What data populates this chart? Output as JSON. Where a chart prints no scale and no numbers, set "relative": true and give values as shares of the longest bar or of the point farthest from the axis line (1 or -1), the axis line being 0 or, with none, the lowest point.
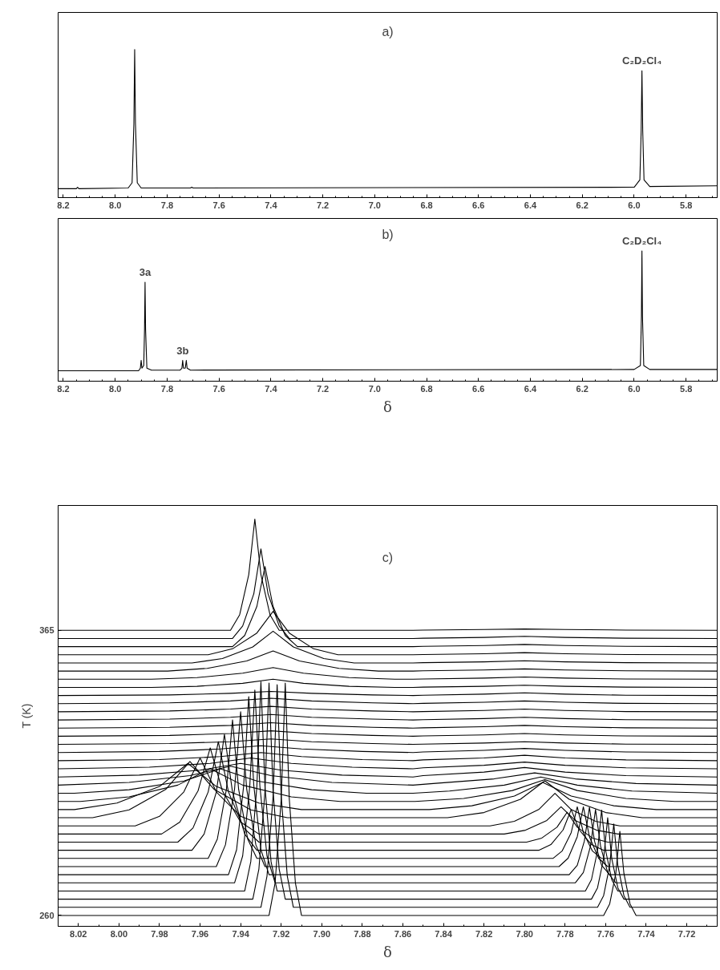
{
  "chart_data": [
    {
      "type": "line",
      "relative": true,
      "color": "#000000",
      "xlim": [
        8.22,
        5.68
      ],
      "xticks": [
        {
          "value": 8.2,
          "label": "8.2"
        },
        {
          "value": 8.0,
          "label": "8.0"
        },
        {
          "value": 7.8,
          "label": "7.8"
        },
        {
          "value": 7.6,
          "label": "7.6"
        },
        {
          "value": 7.4,
          "label": "7.4"
        },
        {
          "value": 7.2,
          "label": "7.2"
        },
        {
          "value": 7.0,
          "label": "7.0"
        },
        {
          "value": 6.8,
          "label": "6.8"
        },
        {
          "value": 6.6,
          "label": "6.6"
        },
        {
          "value": 6.4,
          "label": "6.4"
        },
        {
          "value": 6.2,
          "label": "6.2"
        },
        {
          "value": 6.0,
          "label": "6.0"
        },
        {
          "value": 5.8,
          "label": "5.8"
        },
        {
          "value": 8.15,
          "label": null
        },
        {
          "value": 8.1,
          "label": null
        },
        {
          "value": 8.05,
          "label": null
        },
        {
          "value": 7.95,
          "label": null
        },
        {
          "value": 7.9,
          "label": null
        },
        {
          "value": 7.85,
          "label": null
        },
        {
          "value": 7.75,
          "label": null
        },
        {
          "value": 7.7,
          "label": null
        },
        {
          "value": 7.65,
          "label": null
        },
        {
          "value": 7.55,
          "label": null
        },
        {
          "value": 7.5,
          "label": null
        },
        {
          "value": 7.45,
          "label": null
        },
        {
          "value": 7.35,
          "label": null
        },
        {
          "value": 7.3,
          "label": null
        },
        {
          "value": 7.25,
          "label": null
        },
        {
          "value": 7.15,
          "label": null
        },
        {
          "value": 7.1,
          "label": null
        },
        {
          "value": 7.05,
          "label": null
        },
        {
          "value": 6.95,
          "label": null
        },
        {
          "value": 6.9,
          "label": null
        },
        {
          "value": 6.85,
          "label": null
        },
        {
          "value": 6.75,
          "label": null
        },
        {
          "value": 6.7,
          "label": null
        },
        {
          "value": 6.65,
          "label": null
        },
        {
          "value": 6.55,
          "label": null
        },
        {
          "value": 6.5,
          "label": null
        },
        {
          "value": 6.45,
          "label": null
        },
        {
          "value": 6.35,
          "label": null
        },
        {
          "value": 6.3,
          "label": null
        },
        {
          "value": 6.25,
          "label": null
        },
        {
          "value": 6.15,
          "label": null
        },
        {
          "value": 6.1,
          "label": null
        },
        {
          "value": 6.05,
          "label": null
        },
        {
          "value": 5.95,
          "label": null
        },
        {
          "value": 5.9,
          "label": null
        },
        {
          "value": 5.85,
          "label": null
        },
        {
          "value": 5.75,
          "label": null
        },
        {
          "value": 5.7,
          "label": null
        }
      ],
      "x": [
        8.22,
        8.15,
        8.145,
        8.14,
        7.95,
        7.935,
        7.928,
        7.925,
        7.922,
        7.915,
        7.9,
        7.71,
        7.705,
        7.7,
        6.0,
        5.978,
        5.973,
        5.97,
        5.967,
        5.962,
        5.94,
        5.68
      ],
      "values": [
        0.06,
        0.06,
        0.07,
        0.06,
        0.065,
        0.1,
        0.5,
        1,
        0.5,
        0.1,
        0.065,
        0.065,
        0.07,
        0.065,
        0.07,
        0.12,
        0.45,
        0.856,
        0.45,
        0.12,
        0.075,
        0.08
      ],
      "annotations": [
        "a)",
        {
          "text": "C₂D₂Cl₄",
          "x": 5.97,
          "y": 0.856
        }
      ]
    },
    {
      "type": "line",
      "relative": true,
      "color": "#000000",
      "xlim": [
        8.22,
        5.68
      ],
      "xlabel": "δ",
      "xticks": [
        {
          "value": 8.2,
          "label": "8.2"
        },
        {
          "value": 8.0,
          "label": "8.0"
        },
        {
          "value": 7.8,
          "label": "7.8"
        },
        {
          "value": 7.6,
          "label": "7.6"
        },
        {
          "value": 7.4,
          "label": "7.4"
        },
        {
          "value": 7.2,
          "label": "7.2"
        },
        {
          "value": 7.0,
          "label": "7.0"
        },
        {
          "value": 6.8,
          "label": "6.8"
        },
        {
          "value": 6.6,
          "label": "6.6"
        },
        {
          "value": 6.4,
          "label": "6.4"
        },
        {
          "value": 6.2,
          "label": "6.2"
        },
        {
          "value": 6.0,
          "label": "6.0"
        },
        {
          "value": 5.8,
          "label": "5.8"
        },
        {
          "value": 8.15,
          "label": null
        },
        {
          "value": 8.1,
          "label": null
        },
        {
          "value": 8.05,
          "label": null
        },
        {
          "value": 7.95,
          "label": null
        },
        {
          "value": 7.9,
          "label": null
        },
        {
          "value": 7.85,
          "label": null
        },
        {
          "value": 7.75,
          "label": null
        },
        {
          "value": 7.7,
          "label": null
        },
        {
          "value": 7.65,
          "label": null
        },
        {
          "value": 7.55,
          "label": null
        },
        {
          "value": 7.5,
          "label": null
        },
        {
          "value": 7.45,
          "label": null
        },
        {
          "value": 7.35,
          "label": null
        },
        {
          "value": 7.3,
          "label": null
        },
        {
          "value": 7.25,
          "label": null
        },
        {
          "value": 7.15,
          "label": null
        },
        {
          "value": 7.1,
          "label": null
        },
        {
          "value": 7.05,
          "label": null
        },
        {
          "value": 6.95,
          "label": null
        },
        {
          "value": 6.9,
          "label": null
        },
        {
          "value": 6.85,
          "label": null
        },
        {
          "value": 6.75,
          "label": null
        },
        {
          "value": 6.7,
          "label": null
        },
        {
          "value": 6.65,
          "label": null
        },
        {
          "value": 6.55,
          "label": null
        },
        {
          "value": 6.5,
          "label": null
        },
        {
          "value": 6.45,
          "label": null
        },
        {
          "value": 6.35,
          "label": null
        },
        {
          "value": 6.3,
          "label": null
        },
        {
          "value": 6.25,
          "label": null
        },
        {
          "value": 6.15,
          "label": null
        },
        {
          "value": 6.1,
          "label": null
        },
        {
          "value": 6.05,
          "label": null
        },
        {
          "value": 5.95,
          "label": null
        },
        {
          "value": 5.9,
          "label": null
        },
        {
          "value": 5.85,
          "label": null
        },
        {
          "value": 5.75,
          "label": null
        },
        {
          "value": 5.7,
          "label": null
        }
      ],
      "x": [
        8.22,
        7.91,
        7.903,
        7.9,
        7.897,
        7.89,
        7.887,
        7.885,
        7.883,
        7.878,
        7.86,
        7.75,
        7.743,
        7.74,
        7.737,
        7.73,
        7.726,
        7.723,
        7.71,
        6.0,
        5.976,
        5.972,
        5.97,
        5.968,
        5.963,
        5.94,
        5.68
      ],
      "values": [
        0.08,
        0.08,
        0.1,
        0.16,
        0.1,
        0.12,
        0.4,
        0.76,
        0.4,
        0.1,
        0.085,
        0.085,
        0.1,
        0.16,
        0.1,
        0.1,
        0.16,
        0.1,
        0.085,
        0.09,
        0.12,
        0.5,
        1,
        0.5,
        0.12,
        0.09,
        0.09
      ],
      "annotations": [
        "b)",
        {
          "text": "3a",
          "x": 7.885,
          "y": 0.76
        },
        {
          "text": "3b",
          "x": 7.74,
          "y": 0.16
        },
        {
          "text": "C₂D₂Cl₄",
          "x": 5.97,
          "y": 1
        }
      ]
    },
    {
      "type": "line",
      "color": "#000000",
      "xlim": [
        8.03,
        7.705
      ],
      "ylim": [
        256,
        411
      ],
      "xlabel": "δ",
      "ylabel": "T (K)",
      "yticks": [
        260,
        365
      ],
      "xticks": [
        {
          "value": 8.02,
          "label": "8.02"
        },
        {
          "value": 8.0,
          "label": "8.00"
        },
        {
          "value": 7.98,
          "label": "7.98"
        },
        {
          "value": 7.96,
          "label": "7.96"
        },
        {
          "value": 7.94,
          "label": "7.94"
        },
        {
          "value": 7.92,
          "label": "7.92"
        },
        {
          "value": 7.9,
          "label": "7.90"
        },
        {
          "value": 7.88,
          "label": "7.88"
        },
        {
          "value": 7.86,
          "label": "7.86"
        },
        {
          "value": 7.84,
          "label": "7.84"
        },
        {
          "value": 7.82,
          "label": "7.82"
        },
        {
          "value": 7.8,
          "label": "7.80"
        },
        {
          "value": 7.78,
          "label": "7.78"
        },
        {
          "value": 7.76,
          "label": "7.76"
        },
        {
          "value": 7.74,
          "label": "7.74"
        },
        {
          "value": 7.72,
          "label": "7.72"
        },
        {
          "value": 8.01,
          "label": null
        },
        {
          "value": 7.99,
          "label": null
        },
        {
          "value": 7.97,
          "label": null
        },
        {
          "value": 7.95,
          "label": null
        },
        {
          "value": 7.93,
          "label": null
        },
        {
          "value": 7.91,
          "label": null
        },
        {
          "value": 7.89,
          "label": null
        },
        {
          "value": 7.87,
          "label": null
        },
        {
          "value": 7.85,
          "label": null
        },
        {
          "value": 7.83,
          "label": null
        },
        {
          "value": 7.81,
          "label": null
        },
        {
          "value": 7.79,
          "label": null
        },
        {
          "value": 7.77,
          "label": null
        },
        {
          "value": 7.75,
          "label": null
        },
        {
          "value": 7.73,
          "label": null
        },
        {
          "value": 7.71,
          "label": null
        }
      ],
      "annotations": [
        "c)"
      ],
      "series": [
        {
          "x": [
            8.03,
            7.926,
            7.923,
            7.92,
            7.918,
            7.916,
            7.913,
            7.91,
            7.855,
            7.761,
            7.758,
            7.755,
            7.753,
            7.751,
            7.748,
            7.745,
            7.705
          ],
          "values": [
            260,
            260,
            272,
            302.8,
            345.6,
            302.8,
            272,
            260,
            260,
            260,
            264.3,
            275.5,
            291,
            275.5,
            264.3,
            260,
            260
          ]
        },
        {
          "x": [
            8.03,
            7.93,
            7.927,
            7.924,
            7.922,
            7.92,
            7.917,
            7.914,
            7.855,
            7.764,
            7.761,
            7.758,
            7.756,
            7.754,
            7.751,
            7.748,
            7.705
          ],
          "values": [
            263,
            263,
            274.5,
            304,
            345,
            304,
            274.5,
            263,
            263,
            263,
            267.3,
            278.4,
            293.7,
            278.4,
            267.3,
            263,
            263
          ]
        },
        {
          "x": [
            8.03,
            7.934,
            7.931,
            7.928,
            7.926,
            7.924,
            7.921,
            7.918,
            7.855,
            7.767,
            7.764,
            7.761,
            7.759,
            7.757,
            7.754,
            7.751,
            7.705
          ],
          "values": [
            266,
            266,
            277.1,
            305.8,
            345.6,
            305.8,
            277.1,
            266,
            266,
            266,
            270.2,
            281,
            296,
            281,
            270.2,
            266,
            266
          ]
        },
        {
          "x": [
            8.03,
            7.938,
            7.935,
            7.932,
            7.93,
            7.928,
            7.925,
            7.922,
            7.855,
            7.77,
            7.767,
            7.764,
            7.762,
            7.76,
            7.757,
            7.754,
            7.705
          ],
          "values": [
            269,
            269,
            279.8,
            307.5,
            346,
            307.5,
            279.8,
            269,
            269,
            269,
            273.2,
            283.9,
            298.8,
            283.9,
            273.2,
            269,
            269
          ]
        },
        {
          "x": [
            8.03,
            7.943,
            7.939,
            7.9355,
            7.933,
            7.9305,
            7.927,
            7.923,
            7.855,
            7.775,
            7.771,
            7.7675,
            7.765,
            7.7625,
            7.759,
            7.755,
            7.705
          ],
          "values": [
            272,
            272,
            281.9,
            307.5,
            343,
            307.5,
            281.9,
            272,
            272,
            272,
            275.8,
            285.5,
            299,
            285.5,
            275.8,
            272,
            272
          ]
        },
        {
          "x": [
            8.03,
            7.946,
            7.942,
            7.9385,
            7.936,
            7.9335,
            7.93,
            7.926,
            7.855,
            7.778,
            7.774,
            7.7705,
            7.768,
            7.7655,
            7.762,
            7.758,
            7.705
          ],
          "values": [
            275,
            275,
            284.2,
            307.8,
            340.6,
            307.8,
            284.2,
            275,
            275,
            275,
            278.5,
            287.4,
            299.8,
            287.4,
            278.5,
            275,
            275
          ]
        },
        {
          "x": [
            8.03,
            7.952,
            7.9475,
            7.943,
            7.94,
            7.937,
            7.9325,
            7.928,
            7.855,
            7.783,
            7.7785,
            7.774,
            7.771,
            7.768,
            7.7635,
            7.759,
            7.705
          ],
          "values": [
            278,
            278,
            286,
            306.5,
            335,
            306.5,
            286,
            278,
            278,
            278,
            281.1,
            289,
            300,
            289,
            281.1,
            278,
            278
          ]
        },
        {
          "x": [
            8.03,
            7.956,
            7.9515,
            7.947,
            7.944,
            7.941,
            7.9365,
            7.932,
            7.855,
            7.786,
            7.7815,
            7.777,
            7.774,
            7.771,
            7.7665,
            7.762,
            7.705
          ],
          "values": [
            281,
            281,
            288.1,
            306.5,
            332,
            306.5,
            288.1,
            281,
            281,
            281,
            283.7,
            290.5,
            300,
            290.5,
            283.7,
            281,
            281
          ]
        },
        {
          "x": [
            8.03,
            7.964,
            7.958,
            7.952,
            7.948,
            7.944,
            7.938,
            7.932,
            7.855,
            7.793,
            7.787,
            7.781,
            7.777,
            7.773,
            7.767,
            7.761,
            7.705
          ],
          "values": [
            284,
            284,
            290,
            305.4,
            326.7,
            305.4,
            290,
            284,
            284,
            284,
            286.1,
            291.5,
            299,
            291.5,
            286.1,
            284,
            284
          ]
        },
        {
          "x": [
            8.03,
            7.971,
            7.9635,
            7.956,
            7.951,
            7.946,
            7.9385,
            7.931,
            7.855,
            7.799,
            7.7915,
            7.784,
            7.779,
            7.774,
            7.7665,
            7.759,
            7.705
          ],
          "values": [
            287,
            287,
            292.2,
            305.5,
            324,
            305.5,
            292.2,
            287,
            287,
            287,
            288.5,
            292.5,
            298,
            292.5,
            288.5,
            287,
            287
          ]
        },
        {
          "x": [
            8.03,
            7.979,
            7.97,
            7.961,
            7.955,
            7.949,
            7.94,
            7.931,
            7.855,
            7.81,
            7.7995,
            7.789,
            7.782,
            7.775,
            7.7645,
            7.754,
            7.705
          ],
          "values": [
            290,
            290,
            294.4,
            305.9,
            321.7,
            305.9,
            294.4,
            290,
            290,
            290,
            291.4,
            295,
            300,
            295,
            291.4,
            290,
            290
          ]
        },
        {
          "x": [
            8.03,
            7.992,
            7.98,
            7.968,
            7.96,
            7.952,
            7.94,
            7.928,
            7.855,
            7.817,
            7.805,
            7.793,
            7.785,
            7.777,
            7.765,
            7.753,
            7.705
          ],
          "values": [
            293,
            293,
            296.5,
            305.5,
            318,
            305.5,
            296.5,
            293,
            293,
            293,
            294.7,
            299,
            305,
            299,
            294.7,
            293,
            293
          ]
        },
        {
          "x": [
            8.03,
            8.013,
            7.995,
            7.977,
            7.965,
            7.953,
            7.935,
            7.917,
            7.855,
            7.838,
            7.82,
            7.802,
            7.79,
            7.778,
            7.76,
            7.742,
            7.705
          ],
          "values": [
            296,
            296,
            298.9,
            306.4,
            316.7,
            306.4,
            298.9,
            296,
            296,
            296,
            297.9,
            302.8,
            309.6,
            302.8,
            297.9,
            296,
            296
          ]
        },
        {
          "x": [
            8.03,
            8.022,
            8.001,
            7.98,
            7.966,
            7.952,
            7.931,
            7.91,
            7.855,
            7.847,
            7.826,
            7.805,
            7.791,
            7.777,
            7.756,
            7.735,
            7.705
          ],
          "values": [
            299,
            299,
            301.4,
            307.5,
            316,
            307.5,
            301.4,
            299,
            299,
            299,
            300.4,
            304,
            309,
            304,
            300.4,
            299,
            299
          ]
        },
        {
          "x": [
            8.03,
            8.019,
            7.995,
            7.971,
            7.955,
            7.939,
            7.915,
            7.891,
            7.855,
            7.854,
            7.83,
            7.806,
            7.79,
            7.774,
            7.75,
            7.726,
            7.705
          ],
          "values": [
            302,
            302,
            303.7,
            308,
            314,
            308,
            303.7,
            302,
            302,
            302,
            303.1,
            306,
            310,
            306,
            303.1,
            302,
            302
          ]
        },
        {
          "x": [
            8.03,
            8.022,
            7.995,
            7.968,
            7.95,
            7.932,
            7.905,
            7.878,
            7.855,
            7.837,
            7.81,
            7.792,
            7.774,
            7.747,
            7.705
          ],
          "values": [
            305,
            305,
            306.3,
            309.5,
            314,
            309.5,
            306.3,
            305,
            305,
            305.8,
            308,
            311,
            308,
            305.8,
            305
          ]
        },
        {
          "x": [
            8.03,
            7.995,
            7.965,
            7.945,
            7.925,
            7.895,
            7.855,
            7.845,
            7.815,
            7.795,
            7.775,
            7.745,
            7.705
          ],
          "values": [
            308,
            309,
            311.5,
            315,
            311.5,
            309,
            308,
            308.6,
            310.3,
            312.5,
            310.3,
            308.6,
            308
          ]
        },
        {
          "x": [
            8.03,
            7.99,
            7.96,
            7.94,
            7.92,
            7.89,
            7.855,
            7.85,
            7.82,
            7.8,
            7.78,
            7.75,
            7.705
          ],
          "values": [
            311,
            311.7,
            313.5,
            316,
            313.5,
            311.7,
            311,
            311.5,
            312.8,
            314.5,
            312.8,
            311.5,
            311
          ]
        },
        {
          "x": [
            8.03,
            7.985,
            7.955,
            7.935,
            7.915,
            7.885,
            7.855,
            7.85,
            7.82,
            7.8,
            7.78,
            7.75,
            7.705
          ],
          "values": [
            314,
            314.6,
            316,
            318,
            316,
            314.6,
            314,
            314.4,
            315.3,
            316.5,
            315.3,
            314.4,
            314
          ]
        },
        {
          "x": [
            8.03,
            7.98,
            7.95,
            7.93,
            7.91,
            7.88,
            7.855,
            7.85,
            7.82,
            7.8,
            7.78,
            7.75,
            7.705
          ],
          "values": [
            317,
            317.4,
            318.5,
            320,
            318.5,
            317.4,
            317,
            317.3,
            318,
            319,
            318,
            317.3,
            317
          ]
        },
        {
          "x": [
            8.03,
            7.98,
            7.95,
            7.93,
            7.91,
            7.88,
            7.855,
            7.85,
            7.82,
            7.8,
            7.78,
            7.75,
            7.705
          ],
          "values": [
            320,
            320.4,
            321.3,
            322.5,
            321.3,
            320.4,
            320,
            320.2,
            320.8,
            321.5,
            320.8,
            320.2,
            320
          ]
        },
        {
          "x": [
            8.03,
            7.975,
            7.945,
            7.925,
            7.905,
            7.875,
            7.855,
            7.85,
            7.82,
            7.8,
            7.78,
            7.75,
            7.705
          ],
          "values": [
            323,
            323.3,
            324,
            325,
            324,
            323.3,
            323,
            323.1,
            323.5,
            324,
            323.5,
            323.1,
            323
          ]
        },
        {
          "x": [
            8.03,
            7.975,
            7.945,
            7.925,
            7.905,
            7.875,
            7.855,
            7.85,
            7.82,
            7.8,
            7.78,
            7.75,
            7.705
          ],
          "values": [
            326,
            326.3,
            327,
            328,
            327,
            326.3,
            326,
            326.1,
            326.5,
            327,
            326.5,
            326.1,
            326
          ]
        },
        {
          "x": [
            8.03,
            7.975,
            7.945,
            7.925,
            7.905,
            7.875,
            7.855,
            7.85,
            7.82,
            7.8,
            7.78,
            7.75,
            7.705
          ],
          "values": [
            329,
            329.3,
            330,
            331,
            330,
            329.3,
            329,
            329.1,
            329.5,
            330,
            329.5,
            329.1,
            329
          ]
        },
        {
          "x": [
            8.03,
            7.975,
            7.945,
            7.925,
            7.905,
            7.875,
            7.855,
            7.85,
            7.82,
            7.8,
            7.78,
            7.75,
            7.705
          ],
          "values": [
            332,
            332.3,
            333,
            334,
            333,
            332.3,
            332,
            332.1,
            332.5,
            333,
            332.5,
            332.1,
            332
          ]
        },
        {
          "x": [
            8.03,
            7.975,
            7.945,
            7.925,
            7.905,
            7.875,
            7.855,
            7.85,
            7.82,
            7.8,
            7.78,
            7.75,
            7.705
          ],
          "values": [
            335,
            335.3,
            336,
            337,
            336,
            335.3,
            335,
            335.1,
            335.5,
            336,
            335.5,
            335.1,
            335
          ]
        },
        {
          "x": [
            8.03,
            7.975,
            7.945,
            7.925,
            7.905,
            7.875,
            7.855,
            7.85,
            7.82,
            7.8,
            7.78,
            7.75,
            7.705
          ],
          "values": [
            338,
            338.3,
            339,
            340,
            339,
            338.3,
            338,
            338.1,
            338.5,
            339,
            338.5,
            338.1,
            338
          ]
        },
        {
          "x": [
            8.03,
            7.975,
            7.945,
            7.925,
            7.905,
            7.875,
            7.855,
            7.85,
            7.82,
            7.8,
            7.78,
            7.75,
            7.705
          ],
          "values": [
            341,
            341.2,
            341.8,
            342.5,
            341.8,
            341.2,
            341,
            341.1,
            341.5,
            342,
            341.5,
            341.1,
            341
          ]
        },
        {
          "x": [
            8.03,
            7.984,
            7.9615,
            7.939,
            7.924,
            7.909,
            7.8865,
            7.864,
            7.855,
            7.85,
            7.82,
            7.8,
            7.78,
            7.75,
            7.705
          ],
          "values": [
            344,
            344,
            344.4,
            345.5,
            347,
            345.5,
            344.4,
            344,
            344,
            344.1,
            344.4,
            344.8,
            344.4,
            344.1,
            344
          ]
        },
        {
          "x": [
            8.03,
            7.984,
            7.9615,
            7.939,
            7.924,
            7.909,
            7.8865,
            7.864,
            7.855,
            7.85,
            7.82,
            7.8,
            7.78,
            7.75,
            7.705
          ],
          "values": [
            347,
            347,
            347.6,
            349.2,
            351.3,
            349.2,
            347.6,
            347,
            347,
            347.1,
            347.4,
            347.8,
            347.4,
            347.1,
            347
          ]
        },
        {
          "x": [
            8.03,
            7.976,
            7.9565,
            7.937,
            7.924,
            7.911,
            7.8915,
            7.872,
            7.855,
            7.85,
            7.82,
            7.8,
            7.78,
            7.75,
            7.705
          ],
          "values": [
            350,
            350,
            351,
            353.7,
            357.4,
            353.7,
            351,
            350,
            350,
            350.1,
            350.4,
            350.8,
            350.4,
            350.1,
            350
          ]
        },
        {
          "x": [
            8.03,
            7.964,
            7.949,
            7.934,
            7.924,
            7.914,
            7.899,
            7.884,
            7.855,
            7.85,
            7.82,
            7.8,
            7.78,
            7.75,
            7.705
          ],
          "values": [
            353,
            353,
            354.6,
            358.9,
            364.7,
            358.9,
            354.6,
            353,
            353,
            353.1,
            353.4,
            353.8,
            353.4,
            353.1,
            353
          ]
        },
        {
          "x": [
            8.03,
            7.956,
            7.944,
            7.932,
            7.924,
            7.916,
            7.904,
            7.892,
            7.855,
            7.85,
            7.82,
            7.8,
            7.78,
            7.75,
            7.705
          ],
          "values": [
            356,
            356,
            358.2,
            364,
            372,
            364,
            358.2,
            356,
            356,
            356.1,
            356.4,
            356.8,
            356.4,
            356.1,
            356
          ]
        },
        {
          "x": [
            8.03,
            7.944,
            7.938,
            7.932,
            7.928,
            7.924,
            7.918,
            7.912,
            7.855,
            7.85,
            7.82,
            7.8,
            7.78,
            7.75,
            7.705
          ],
          "values": [
            359,
            359,
            363.1,
            373.8,
            388.5,
            373.8,
            363.1,
            359,
            359,
            359.1,
            359.4,
            359.8,
            359.4,
            359.1,
            359
          ]
        },
        {
          "x": [
            8.03,
            7.944,
            7.939,
            7.9335,
            7.93,
            7.9265,
            7.921,
            7.916,
            7.855,
            7.85,
            7.82,
            7.8,
            7.78,
            7.75,
            7.705
          ],
          "values": [
            362,
            362,
            366.6,
            378.5,
            395,
            378.5,
            366.6,
            362,
            362,
            362.1,
            362.4,
            362.8,
            362.4,
            362.1,
            362
          ]
        },
        {
          "x": [
            8.03,
            7.945,
            7.9405,
            7.936,
            7.933,
            7.93,
            7.9255,
            7.921,
            7.855,
            7.85,
            7.82,
            7.8,
            7.78,
            7.75,
            7.705
          ],
          "values": [
            365,
            365,
            370.7,
            385.5,
            406,
            385.5,
            370.7,
            365,
            365,
            365.1,
            365.3,
            365.5,
            365.3,
            365.1,
            365
          ]
        }
      ]
    }
  ]
}
